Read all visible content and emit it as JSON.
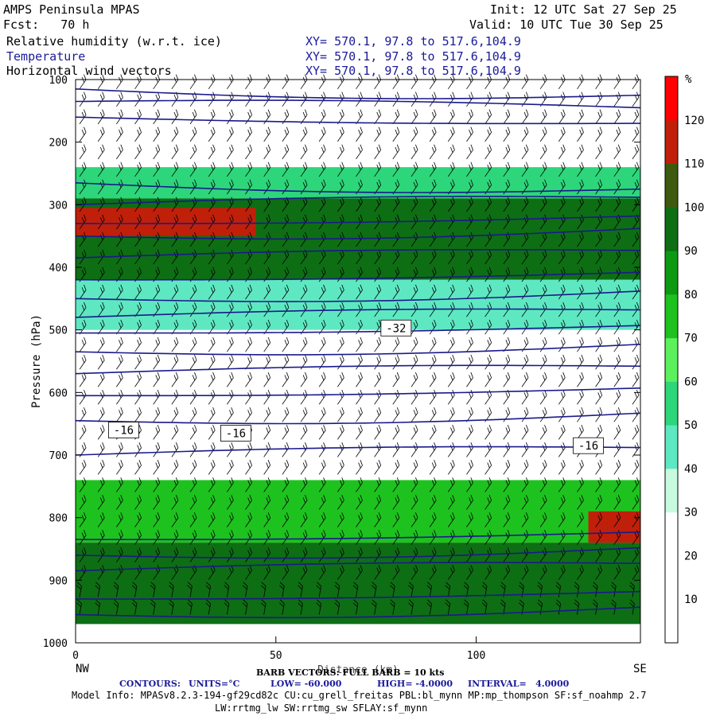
{
  "header": {
    "title": "AMPS Peninsula MPAS",
    "fcst": "Fcst:   70 h",
    "init": "Init: 12 UTC Sat 27 Sep 25",
    "valid": "Valid: 10 UTC Tue 30 Sep 25",
    "fields": [
      {
        "label": "Relative humidity (w.r.t. ice)",
        "xy": "XY= 570.1, 97.8 to 517.6,104.9"
      },
      {
        "label": "Temperature",
        "xy": "XY= 570.1, 97.8 to 517.6,104.9"
      },
      {
        "label": "Horizontal wind vectors",
        "xy": "XY= 570.1, 97.8 to 517.6,104.9"
      }
    ]
  },
  "footer": {
    "barb": "BARB VECTORS: FULL BARB = 10 kts",
    "xaxis_label": "Distance (km)",
    "contours_label": "CONTOURS:",
    "units": "UNITS=°C",
    "low": "LOW= -60.000",
    "high": "HIGH= -4.0000",
    "interval": "INTERVAL=   4.0000",
    "model_info_1": "Model Info: MPASv8.2.3-194-gf29cd82c CU:cu_grell_freitas PBL:bl_mynn MP:mp_thompson SF:sf_noahmp 2.7",
    "model_info_2": "LW:rrtmg_lw SW:rrtmg_sw SFLAY:sf_mynn"
  },
  "colors": {
    "temperature_contour": "#1a1a8c",
    "rh_bins": [
      "#ffffff",
      "#ffffff",
      "#ffffff",
      "#c8fae0",
      "#5ee8c2",
      "#2dd67a",
      "#5cf05c",
      "#1ec21e",
      "#0d9a12",
      "#0e6e14",
      "#3d5a0e",
      "#c0200a",
      "#ff0000"
    ]
  },
  "chart_data": {
    "type": "heatmap",
    "title": "",
    "xlabel": "Distance (km)",
    "ylabel": "Pressure (hPa)",
    "x_range": [
      0,
      141
    ],
    "y_range": [
      1000,
      100
    ],
    "x_ticks": [
      0,
      50,
      100
    ],
    "y_ticks": [
      100,
      200,
      300,
      400,
      500,
      600,
      700,
      800,
      900,
      1000
    ],
    "x_end_labels": {
      "left": "NW",
      "right": "SE"
    },
    "colorbar": {
      "unit": "%",
      "levels": [
        10,
        20,
        30,
        40,
        50,
        60,
        70,
        80,
        90,
        100,
        110,
        120
      ]
    },
    "rh_layers": [
      {
        "p_top": 240,
        "p_bottom": 290,
        "rh": 55
      },
      {
        "p_top": 290,
        "p_bottom": 420,
        "rh": 95
      },
      {
        "p_top": 305,
        "p_bottom": 350,
        "rh": 112,
        "x_range": [
          0,
          45
        ]
      },
      {
        "p_top": 420,
        "p_bottom": 500,
        "rh": 45
      },
      {
        "p_top": 740,
        "p_bottom": 840,
        "rh": 70
      },
      {
        "p_top": 840,
        "p_bottom": 970,
        "rh": 95
      },
      {
        "p_top": 790,
        "p_bottom": 840,
        "rh": 115,
        "x_range": [
          128,
          141
        ]
      }
    ],
    "temperature_contour_labels": [
      {
        "x": 80,
        "p": 497,
        "label": "-32"
      },
      {
        "x": 12,
        "p": 660,
        "label": "-16"
      },
      {
        "x": 40,
        "p": 665,
        "label": "-16"
      },
      {
        "x": 128,
        "p": 685,
        "label": "-16"
      }
    ],
    "grid": false
  }
}
